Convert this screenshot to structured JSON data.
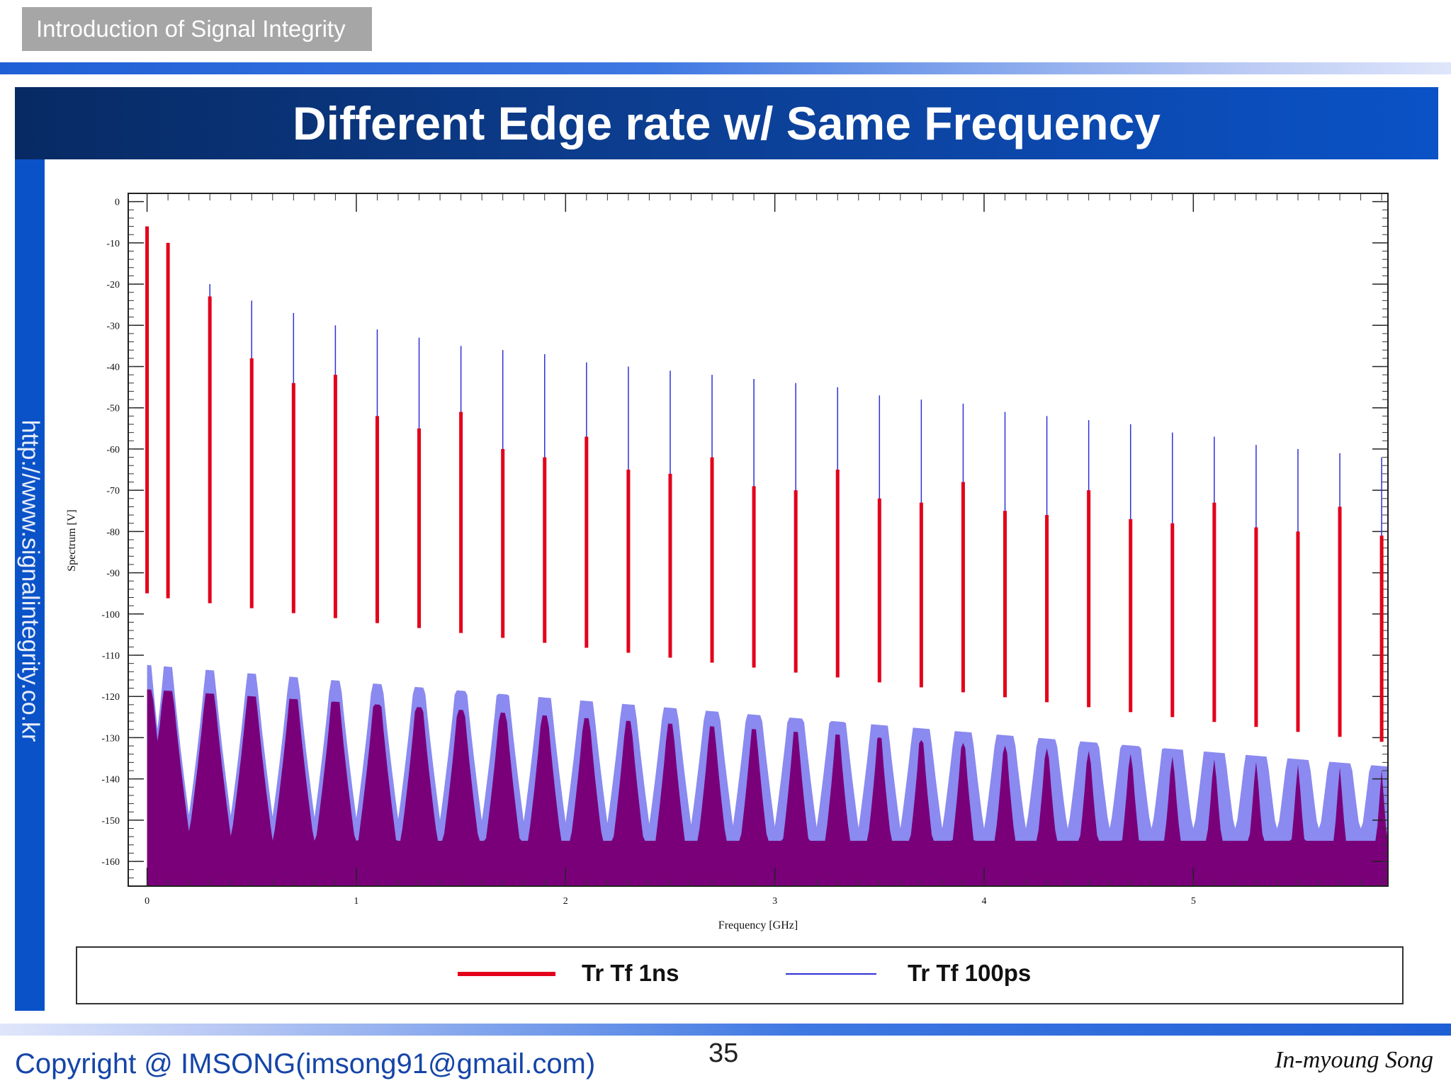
{
  "header": {
    "course_tag": "Introduction of Signal Integrity",
    "title": "Different Edge rate w/ Same Frequency"
  },
  "sidebar": {
    "url": "http://www.signalintegrity.co.kr"
  },
  "footer": {
    "copyright": "Copyright @ IMSONG(imsong91@gmail.com)",
    "page_number": "35",
    "author": "In-myoung Song"
  },
  "colors": {
    "series_1ns": "#e3001b",
    "series_100ps": "#3030d8",
    "fill_1ns": "#7a007a",
    "fill_100ps": "#8a8af0"
  },
  "chart_data": {
    "type": "bar",
    "xlabel": "Frequency [GHz]",
    "ylabel": "Spectrum [V]",
    "xlim": [
      -0.09,
      5.93
    ],
    "ylim": [
      -166,
      2
    ],
    "x_ticks": [
      "0",
      "1",
      "2",
      "3",
      "4",
      "5"
    ],
    "y_ticks": [
      "0",
      "-10",
      "-20",
      "-30",
      "-40",
      "-50",
      "-60",
      "-70",
      "-80",
      "-90",
      "-100",
      "-110",
      "-120",
      "-130",
      "-140",
      "-150",
      "-160"
    ],
    "legend": [
      {
        "name": "Tr Tf 1ns",
        "color": "#e3001b"
      },
      {
        "name": "Tr Tf 100ps",
        "color": "#3030d8"
      }
    ],
    "harmonics_ghz": [
      0.0,
      0.1,
      0.3,
      0.5,
      0.7,
      0.9,
      1.1,
      1.3,
      1.5,
      1.7,
      1.9,
      2.1,
      2.3,
      2.5,
      2.7,
      2.9,
      3.1,
      3.3,
      3.5,
      3.7,
      3.9,
      4.1,
      4.3,
      4.5,
      4.7,
      4.9,
      5.1,
      5.3,
      5.5,
      5.7,
      5.9
    ],
    "series": [
      {
        "name": "Tr Tf 1ns",
        "peaks": [
          -6,
          -10,
          -23,
          -38,
          -44,
          -42,
          -52,
          -55,
          -51,
          -60,
          -62,
          -57,
          -65,
          -66,
          -62,
          -69,
          -70,
          -65,
          -72,
          -73,
          -68,
          -75,
          -76,
          -70,
          -77,
          -78,
          -73,
          -79,
          -80,
          -74,
          -81
        ]
      },
      {
        "name": "Tr Tf 100ps",
        "peaks": [
          -6,
          -10,
          -20,
          -24,
          -27,
          -30,
          -31,
          -33,
          -35,
          -36,
          -37,
          -39,
          -40,
          -41,
          -42,
          -43,
          -44,
          -45,
          -47,
          -48,
          -49,
          -51,
          -52,
          -53,
          -54,
          -56,
          -57,
          -59,
          -60,
          -61,
          -62
        ]
      }
    ]
  }
}
